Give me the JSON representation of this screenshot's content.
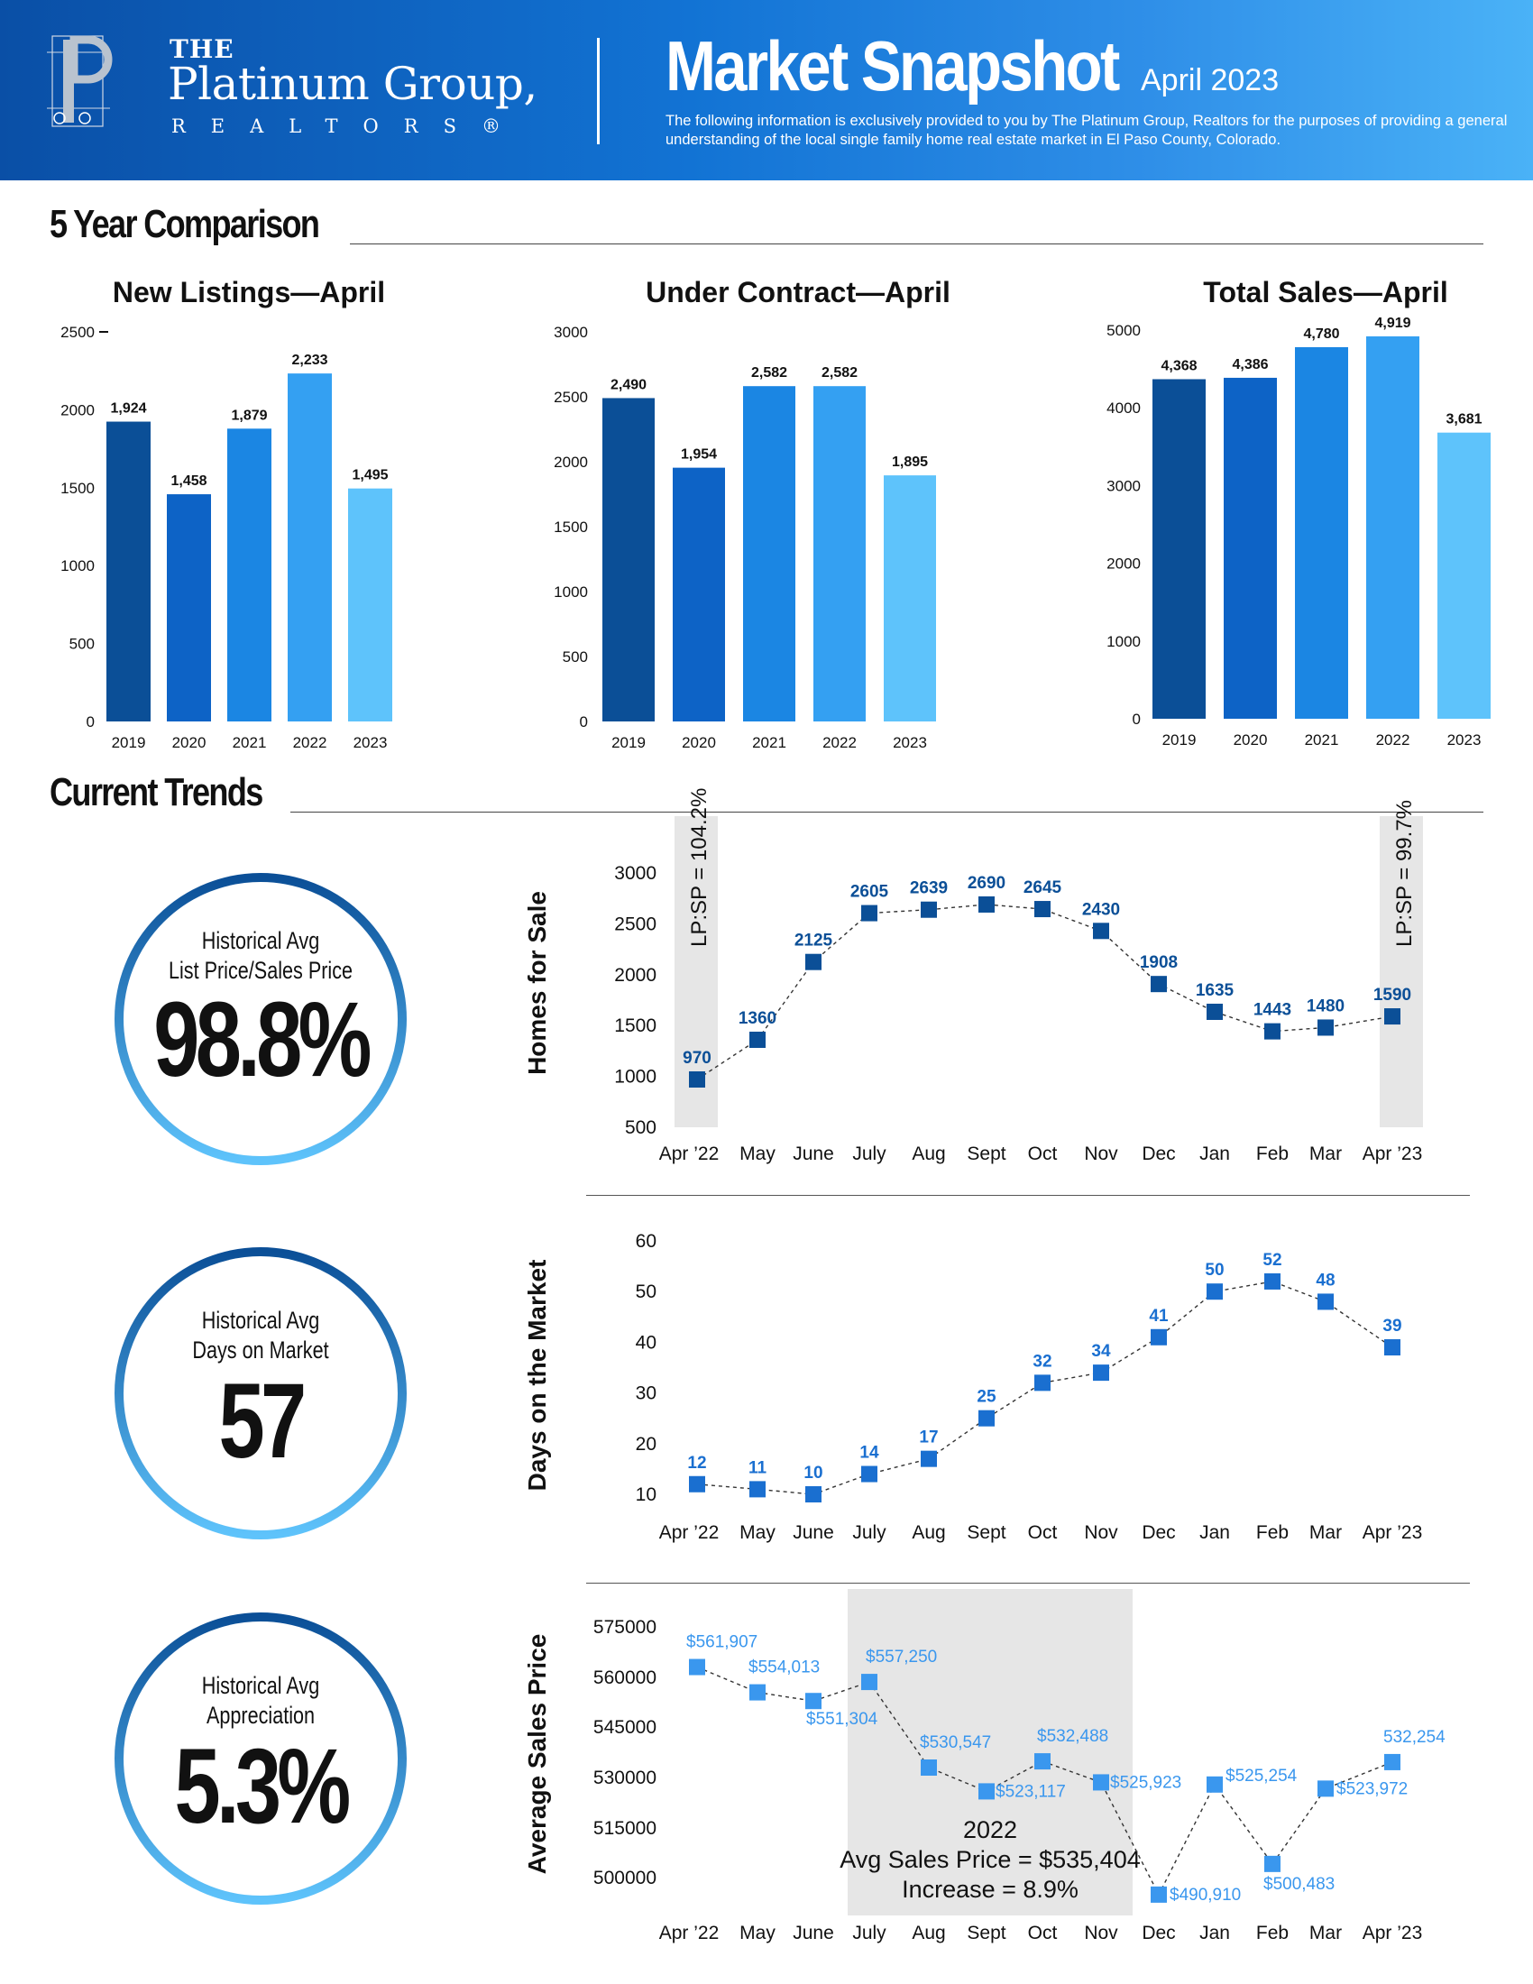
{
  "header": {
    "logo_the": "THE",
    "logo_name": "Platinum Group,",
    "logo_realtors": "REALTORS®",
    "title": "Market Snapshot",
    "date": "April 2023",
    "description": "The following information is exclusively provided to you by The Platinum Group, Realtors for the purposes of providing a general understanding of the local single family home real estate market in El Paso County, Colorado."
  },
  "sections": {
    "five_year": "5 Year Comparison",
    "current_trends": "Current Trends"
  },
  "colors": {
    "bar": [
      "#0b4f97",
      "#0d63c6",
      "#1b86e3",
      "#34a0f2",
      "#5ec3fb"
    ],
    "dark_line": "#0b4f97",
    "mid_line": "#1a6fd0",
    "light_line": "#3a97ee"
  },
  "circles": [
    {
      "label1": "Historical Avg",
      "label2": "List Price/Sales Price",
      "value": "98.8%"
    },
    {
      "label1": "Historical Avg",
      "label2": "Days on Market",
      "value": "57"
    },
    {
      "label1": "Historical Avg",
      "label2": "Appreciation",
      "value": "5.3%"
    }
  ],
  "chart_data": [
    {
      "type": "bar",
      "title": "New Listings—April",
      "categories": [
        "2019",
        "2020",
        "2021",
        "2022",
        "2023"
      ],
      "values": [
        1924,
        1458,
        1879,
        2233,
        1495
      ],
      "data_labels": [
        "1,924",
        "1,458",
        "1,879",
        "2,233",
        "1,495"
      ],
      "yticks": [
        "0",
        "500",
        "1000",
        "1500",
        "2000",
        "2500"
      ],
      "ylim": [
        0,
        2500
      ]
    },
    {
      "type": "bar",
      "title": "Under Contract—April",
      "categories": [
        "2019",
        "2020",
        "2021",
        "2022",
        "2023"
      ],
      "values": [
        2490,
        1954,
        2582,
        2582,
        1895
      ],
      "data_labels": [
        "2,490",
        "1,954",
        "2,582",
        "2,582",
        "1,895"
      ],
      "yticks": [
        "0",
        "500",
        "1000",
        "1500",
        "2000",
        "2500",
        "3000"
      ],
      "ylim": [
        0,
        3000
      ]
    },
    {
      "type": "bar",
      "title": "Total Sales—April",
      "categories": [
        "2019",
        "2020",
        "2021",
        "2022",
        "2023"
      ],
      "values": [
        4368,
        4386,
        4780,
        4919,
        3681
      ],
      "data_labels": [
        "4,368",
        "4,386",
        "4,780",
        "4,919",
        "3,681"
      ],
      "yticks": [
        "0",
        "1000",
        "2000",
        "3000",
        "4000",
        "5000"
      ],
      "ylim": [
        0,
        5000
      ]
    },
    {
      "type": "line",
      "ylabel": "Homes for Sale",
      "x": [
        "Apr ’22",
        "May",
        "June",
        "July",
        "Aug",
        "Sept",
        "Oct",
        "Nov",
        "Dec",
        "Jan",
        "Feb",
        "Mar",
        "Apr ’23"
      ],
      "values": [
        970,
        1360,
        2125,
        2605,
        2639,
        2690,
        2645,
        2430,
        1908,
        1635,
        1443,
        1480,
        1590
      ],
      "data_labels": [
        "970",
        "1360",
        "2125",
        "2605",
        "2639",
        "2690",
        "2645",
        "2430",
        "1908",
        "1635",
        "1443",
        "1480",
        "1590"
      ],
      "yticks": [
        "500",
        "1000",
        "1500",
        "2000",
        "2500",
        "3000"
      ],
      "ylim": [
        500,
        3000
      ],
      "annotations": [
        "LP:SP = 104.2%",
        "LP:SP = 99.7%"
      ]
    },
    {
      "type": "line",
      "ylabel": "Days on the Market",
      "x": [
        "Apr ’22",
        "May",
        "June",
        "July",
        "Aug",
        "Sept",
        "Oct",
        "Nov",
        "Dec",
        "Jan",
        "Feb",
        "Mar",
        "Apr ’23"
      ],
      "values": [
        12,
        11,
        10,
        14,
        17,
        25,
        32,
        34,
        41,
        50,
        52,
        48,
        39
      ],
      "data_labels": [
        "12",
        "11",
        "10",
        "14",
        "17",
        "25",
        "32",
        "34",
        "41",
        "50",
        "52",
        "48",
        "39"
      ],
      "yticks": [
        "10",
        "20",
        "30",
        "40",
        "50",
        "60"
      ],
      "ylim": [
        10,
        60
      ]
    },
    {
      "type": "line",
      "ylabel": "Average Sales Price",
      "x": [
        "Apr ’22",
        "May",
        "June",
        "July",
        "Aug",
        "Sept",
        "Oct",
        "Nov",
        "Dec",
        "Jan",
        "Feb",
        "Mar",
        "Apr ’23"
      ],
      "values": [
        561907,
        554013,
        551304,
        557250,
        530547,
        523117,
        532488,
        525923,
        490910,
        525254,
        500483,
        523972,
        532254
      ],
      "data_labels": [
        "$561,907",
        "$554,013",
        "$551,304",
        "$557,250",
        "$530,547",
        "$523,117",
        "$532,488",
        "$525,923",
        "$490,910",
        "$525,254",
        "$500,483",
        "$523,972",
        "532,254"
      ],
      "yticks": [
        "500000",
        "515000",
        "530000",
        "545000",
        "560000",
        "575000"
      ],
      "ylim": [
        492000,
        575000
      ],
      "annotation_lines": [
        "2022",
        "Avg Sales Price = $535,404",
        "Increase = 8.9%"
      ]
    }
  ]
}
